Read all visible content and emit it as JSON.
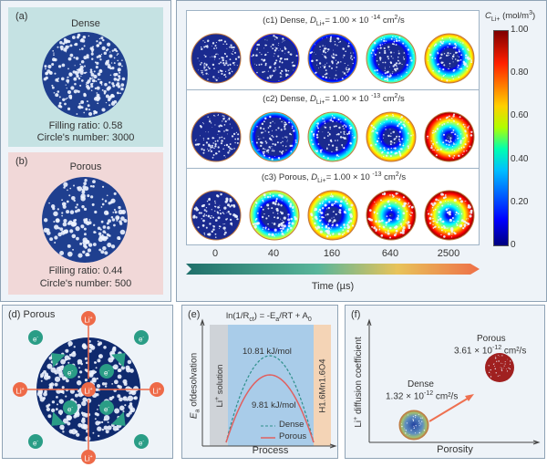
{
  "panel_a": {
    "label": "(a)",
    "title": "Dense",
    "filling_ratio": "Filling ratio: 0.58",
    "circle_number": "Circle's number: 3000",
    "bg": "#c5e2e3"
  },
  "panel_b": {
    "label": "(b)",
    "title": "Porous",
    "filling_ratio": "Filling ratio: 0.44",
    "circle_number": "Circle's number: 500",
    "bg": "#f1d8d8"
  },
  "panel_c": {
    "rows": [
      {
        "label": "(c1)",
        "text": "Dense,",
        "d_sym": "D",
        "d_sub": "Li+",
        "value": "= 1.00 × 10",
        "exp": "-14",
        "unit": "cm",
        "unit_exp": "2",
        "unit_tail": "/s"
      },
      {
        "label": "(c2)",
        "text": "Dense,",
        "d_sym": "D",
        "d_sub": "Li+",
        "value": "= 1.00 × 10",
        "exp": "-13",
        "unit": "cm",
        "unit_exp": "2",
        "unit_tail": "/s"
      },
      {
        "label": "(c3)",
        "text": "Porous,",
        "d_sym": "D",
        "d_sub": "Li+",
        "value": "= 1.00 × 10",
        "exp": "-13",
        "unit": "cm",
        "unit_exp": "2",
        "unit_tail": "/s"
      }
    ],
    "times": [
      "0",
      "40",
      "160",
      "640",
      "2500"
    ],
    "time_axis_label": "Time (µs)",
    "colorbar": {
      "title_sym": "C",
      "title_sub": "Li+",
      "title_unit": "(mol/m",
      "title_unit_exp": "3",
      "title_close": ")",
      "ticks": [
        "1.00",
        "0.80",
        "0.60",
        "0.40",
        "0.20",
        "0"
      ],
      "colormap": "jet"
    }
  },
  "panel_d": {
    "label": "(d)",
    "title": "Porous",
    "li_ion": "Li",
    "li_sup": "+",
    "electron": "e",
    "electron_sup": "-",
    "li_color": "#ee6a48",
    "e_color": "#2a9d86"
  },
  "panel_e": {
    "label": "(e)",
    "equation": "ln(1/R",
    "eq_sub": "ct",
    "eq_rest": ") = -E",
    "eq_sub2": "a",
    "eq_rest2": "/RT + A",
    "eq_sub3": "0",
    "ylabel_sym": "E",
    "ylabel_sub": "a",
    "ylabel_rest": " ofdesolvation",
    "xlabel": "Process",
    "left_region": "Li",
    "left_sup": "+",
    "left_rest": " solution",
    "right_region": "H1.6Mn1.6O4",
    "dense_value": "10.81 kJ/mol",
    "porous_value": "9.81 kJ/mol",
    "legend": [
      "Dense",
      "Porous"
    ],
    "dense_color": "#2e8f8a",
    "porous_color": "#e06060"
  },
  "panel_f": {
    "label": "(f)",
    "ylabel": "Li",
    "ylabel_sup": "+",
    "ylabel_rest": " diffusion coefficient",
    "xlabel": "Porosity",
    "dense_title": "Dense",
    "dense_value": "1.32 × 10",
    "dense_exp": "-12",
    "dense_unit": " cm²/s",
    "porous_title": "Porous",
    "porous_value": "3.61 × 10",
    "porous_exp": "-12",
    "porous_unit": " cm²/s"
  }
}
